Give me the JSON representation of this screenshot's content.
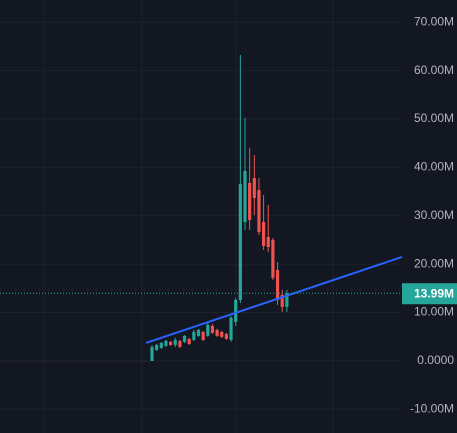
{
  "chart_data": {
    "type": "candlestick",
    "categories": [
      null,
      null,
      null,
      null,
      null,
      null,
      null,
      null,
      null,
      null,
      null,
      null,
      null,
      null,
      null,
      null,
      null,
      null,
      null,
      null,
      null,
      null,
      null,
      null,
      null,
      null,
      null,
      null,
      null,
      null
    ],
    "open": [
      0,
      2.27,
      2.69,
      3.1,
      3.93,
      3.31,
      4.13,
      3.93,
      4.55,
      4.34,
      5.17,
      5.99,
      5.17,
      7.23,
      6.4,
      5.99,
      5.58,
      4.34,
      8.06,
      12.6,
      28.72,
      36.78,
      37.81,
      35.33,
      28.72,
      25.62,
      25.0,
      18.8,
      13.64,
      11.16
    ],
    "high": [
      3.31,
      3.51,
      3.93,
      4.34,
      4.13,
      4.75,
      4.34,
      5.37,
      4.75,
      6.4,
      6.61,
      6.2,
      8.06,
      7.64,
      6.61,
      6.2,
      5.79,
      9.3,
      13.02,
      63.22,
      50.21,
      44.01,
      42.56,
      37.81,
      34.3,
      32.23,
      25.41,
      20.45,
      14.67,
      14.67
    ],
    "low": [
      0,
      2.07,
      2.48,
      2.89,
      3.1,
      2.89,
      2.69,
      3.72,
      3.31,
      4.13,
      4.96,
      4.13,
      4.96,
      5.58,
      4.96,
      4.75,
      4.34,
      3.93,
      7.23,
      11.98,
      27.07,
      27.07,
      30.17,
      26.03,
      22.93,
      22.52,
      16.74,
      11.57,
      10.12,
      10.12
    ],
    "close": [
      2.89,
      3.31,
      3.72,
      4.13,
      3.31,
      4.34,
      2.89,
      5.17,
      3.51,
      5.99,
      6.4,
      4.34,
      7.44,
      5.79,
      5.17,
      4.96,
      4.55,
      8.88,
      12.6,
      36.57,
      39.26,
      29.13,
      33.68,
      26.65,
      23.76,
      23.55,
      17.15,
      12.6,
      11.16,
      13.99
    ],
    "up_color": "#26a69a",
    "down_color": "#ef5350",
    "ylim": [
      -14.9,
      74.6
    ],
    "yticks": [
      {
        "value": 70,
        "label": "70.00M"
      },
      {
        "value": 60,
        "label": "60.00M"
      },
      {
        "value": 50,
        "label": "50.00M"
      },
      {
        "value": 40,
        "label": "40.00M"
      },
      {
        "value": 30,
        "label": "30.00M"
      },
      {
        "value": 20,
        "label": "20.00M"
      },
      {
        "value": 10,
        "label": "10.00M"
      },
      {
        "value": 0,
        "label": "0.0000"
      },
      {
        "value": -10,
        "label": "-10.00M"
      }
    ],
    "grid": true,
    "trendline": {
      "color": "#2962ff",
      "values": [
        3.72,
        21.49
      ]
    },
    "price_line": {
      "value": 13.99,
      "label": "13.99M"
    }
  }
}
